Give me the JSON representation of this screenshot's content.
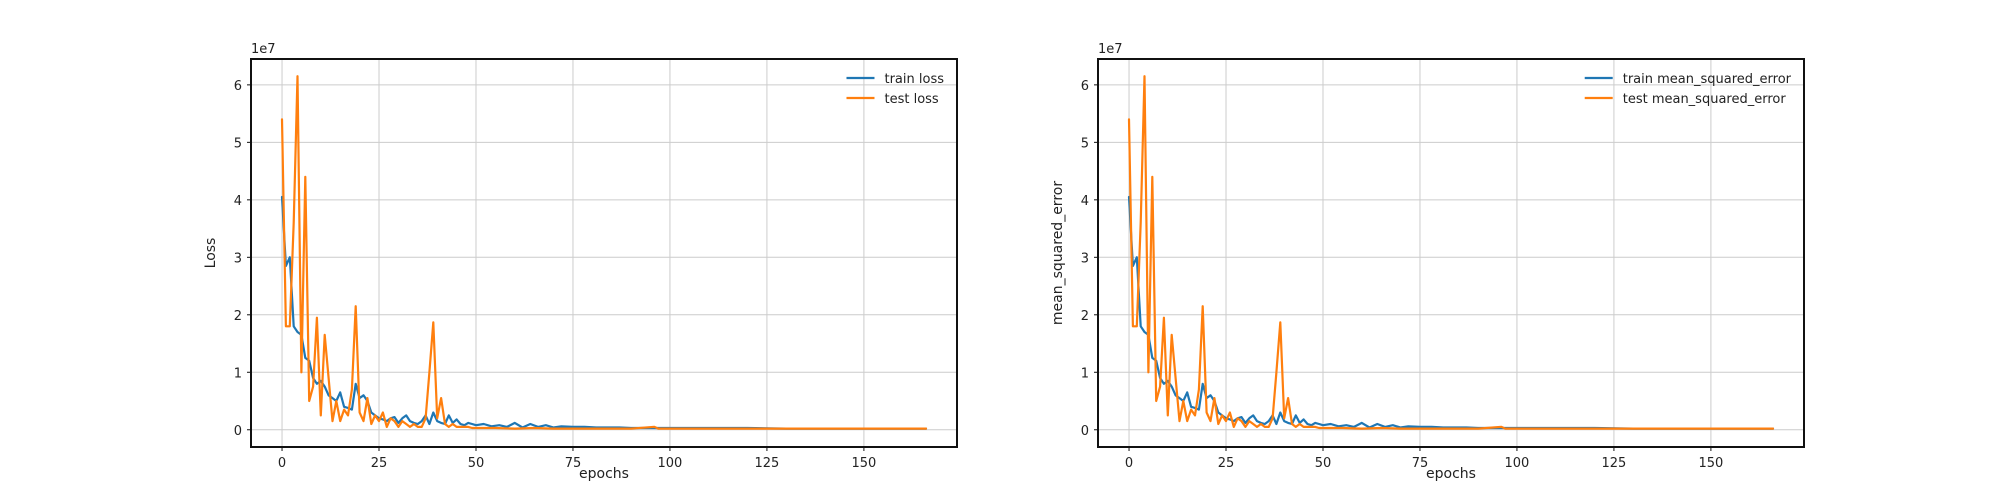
{
  "chart_data": [
    {
      "type": "line",
      "xlabel": "epochs",
      "ylabel": "Loss",
      "y_multiplier_label": "1e7",
      "xlim": [
        -8,
        174
      ],
      "ylim": [
        -0.3,
        6.45
      ],
      "xticks": [
        0,
        25,
        50,
        75,
        100,
        125,
        150
      ],
      "yticks": [
        0,
        1,
        2,
        3,
        4,
        5,
        6
      ],
      "grid": true,
      "legend_position": "top-right",
      "series": [
        {
          "name": "train loss",
          "color": "#1f77b4",
          "x": [
            0,
            1,
            2,
            3,
            4,
            5,
            6,
            7,
            8,
            9,
            10,
            11,
            12,
            13,
            14,
            15,
            16,
            17,
            18,
            19,
            20,
            21,
            22,
            23,
            24,
            25,
            26,
            27,
            28,
            29,
            30,
            31,
            32,
            33,
            34,
            35,
            36,
            37,
            38,
            39,
            40,
            41,
            42,
            43,
            44,
            45,
            46,
            47,
            48,
            49,
            50,
            52,
            54,
            56,
            58,
            60,
            62,
            64,
            66,
            68,
            70,
            72,
            75,
            78,
            81,
            84,
            87,
            90,
            95,
            100,
            110,
            120,
            130,
            140,
            150,
            160,
            166
          ],
          "y": [
            4.05,
            2.85,
            3.0,
            1.8,
            1.7,
            1.65,
            1.25,
            1.2,
            0.9,
            0.8,
            0.85,
            0.75,
            0.6,
            0.55,
            0.5,
            0.65,
            0.4,
            0.38,
            0.35,
            0.8,
            0.55,
            0.6,
            0.5,
            0.3,
            0.25,
            0.2,
            0.18,
            0.15,
            0.2,
            0.22,
            0.12,
            0.2,
            0.25,
            0.15,
            0.12,
            0.1,
            0.15,
            0.25,
            0.1,
            0.3,
            0.15,
            0.12,
            0.1,
            0.25,
            0.12,
            0.18,
            0.1,
            0.08,
            0.12,
            0.1,
            0.08,
            0.1,
            0.06,
            0.08,
            0.05,
            0.12,
            0.04,
            0.1,
            0.05,
            0.08,
            0.04,
            0.06,
            0.05,
            0.05,
            0.04,
            0.04,
            0.04,
            0.03,
            0.03,
            0.03,
            0.03,
            0.03,
            0.02,
            0.02,
            0.02,
            0.02,
            0.02
          ]
        },
        {
          "name": "test loss",
          "color": "#ff7f0e",
          "x": [
            0,
            1,
            2,
            3,
            4,
            5,
            6,
            7,
            8,
            9,
            10,
            11,
            12,
            13,
            14,
            15,
            16,
            17,
            18,
            19,
            20,
            21,
            22,
            23,
            24,
            25,
            26,
            27,
            28,
            29,
            30,
            31,
            32,
            33,
            34,
            35,
            36,
            37,
            38,
            39,
            40,
            41,
            42,
            43,
            44,
            45,
            46,
            47,
            48,
            49,
            50,
            55,
            60,
            65,
            70,
            80,
            90,
            96,
            97,
            100,
            110,
            120,
            130,
            140,
            150,
            160,
            166
          ],
          "y": [
            5.4,
            1.8,
            1.8,
            3.6,
            6.15,
            1.0,
            4.4,
            0.5,
            0.75,
            1.95,
            0.25,
            1.65,
            0.9,
            0.15,
            0.5,
            0.15,
            0.35,
            0.25,
            0.7,
            2.15,
            0.3,
            0.15,
            0.55,
            0.1,
            0.25,
            0.15,
            0.3,
            0.05,
            0.2,
            0.15,
            0.05,
            0.15,
            0.1,
            0.05,
            0.1,
            0.05,
            0.05,
            0.2,
            1.0,
            1.87,
            0.2,
            0.55,
            0.1,
            0.05,
            0.1,
            0.05,
            0.05,
            0.05,
            0.05,
            0.03,
            0.03,
            0.03,
            0.02,
            0.03,
            0.02,
            0.02,
            0.02,
            0.05,
            0.02,
            0.02,
            0.02,
            0.02,
            0.02,
            0.02,
            0.02,
            0.02,
            0.02
          ]
        }
      ]
    },
    {
      "type": "line",
      "xlabel": "epochs",
      "ylabel": "mean_squared_error",
      "y_multiplier_label": "1e7",
      "xlim": [
        -8,
        174
      ],
      "ylim": [
        -0.3,
        6.45
      ],
      "xticks": [
        0,
        25,
        50,
        75,
        100,
        125,
        150
      ],
      "yticks": [
        0,
        1,
        2,
        3,
        4,
        5,
        6
      ],
      "grid": true,
      "legend_position": "top-right",
      "series": [
        {
          "name": "train mean_squared_error",
          "color": "#1f77b4",
          "x": [
            0,
            1,
            2,
            3,
            4,
            5,
            6,
            7,
            8,
            9,
            10,
            11,
            12,
            13,
            14,
            15,
            16,
            17,
            18,
            19,
            20,
            21,
            22,
            23,
            24,
            25,
            26,
            27,
            28,
            29,
            30,
            31,
            32,
            33,
            34,
            35,
            36,
            37,
            38,
            39,
            40,
            41,
            42,
            43,
            44,
            45,
            46,
            47,
            48,
            49,
            50,
            52,
            54,
            56,
            58,
            60,
            62,
            64,
            66,
            68,
            70,
            72,
            75,
            78,
            81,
            84,
            87,
            90,
            95,
            100,
            110,
            120,
            130,
            140,
            150,
            160,
            166
          ],
          "y": [
            4.05,
            2.85,
            3.0,
            1.8,
            1.7,
            1.65,
            1.25,
            1.2,
            0.9,
            0.8,
            0.85,
            0.75,
            0.6,
            0.55,
            0.5,
            0.65,
            0.4,
            0.38,
            0.35,
            0.8,
            0.55,
            0.6,
            0.5,
            0.3,
            0.25,
            0.2,
            0.18,
            0.15,
            0.2,
            0.22,
            0.12,
            0.2,
            0.25,
            0.15,
            0.12,
            0.1,
            0.15,
            0.25,
            0.1,
            0.3,
            0.15,
            0.12,
            0.1,
            0.25,
            0.12,
            0.18,
            0.1,
            0.08,
            0.12,
            0.1,
            0.08,
            0.1,
            0.06,
            0.08,
            0.05,
            0.12,
            0.04,
            0.1,
            0.05,
            0.08,
            0.04,
            0.06,
            0.05,
            0.05,
            0.04,
            0.04,
            0.04,
            0.03,
            0.03,
            0.03,
            0.03,
            0.03,
            0.02,
            0.02,
            0.02,
            0.02,
            0.02
          ]
        },
        {
          "name": "test mean_squared_error",
          "color": "#ff7f0e",
          "x": [
            0,
            1,
            2,
            3,
            4,
            5,
            6,
            7,
            8,
            9,
            10,
            11,
            12,
            13,
            14,
            15,
            16,
            17,
            18,
            19,
            20,
            21,
            22,
            23,
            24,
            25,
            26,
            27,
            28,
            29,
            30,
            31,
            32,
            33,
            34,
            35,
            36,
            37,
            38,
            39,
            40,
            41,
            42,
            43,
            44,
            45,
            46,
            47,
            48,
            49,
            50,
            55,
            60,
            65,
            70,
            80,
            90,
            96,
            97,
            100,
            110,
            120,
            130,
            140,
            150,
            160,
            166
          ],
          "y": [
            5.4,
            1.8,
            1.8,
            3.6,
            6.15,
            1.0,
            4.4,
            0.5,
            0.75,
            1.95,
            0.25,
            1.65,
            0.9,
            0.15,
            0.5,
            0.15,
            0.35,
            0.25,
            0.7,
            2.15,
            0.3,
            0.15,
            0.55,
            0.1,
            0.25,
            0.15,
            0.3,
            0.05,
            0.2,
            0.15,
            0.05,
            0.15,
            0.1,
            0.05,
            0.1,
            0.05,
            0.05,
            0.2,
            1.0,
            1.87,
            0.2,
            0.55,
            0.1,
            0.05,
            0.1,
            0.05,
            0.05,
            0.05,
            0.05,
            0.03,
            0.03,
            0.03,
            0.02,
            0.03,
            0.02,
            0.02,
            0.02,
            0.05,
            0.02,
            0.02,
            0.02,
            0.02,
            0.02,
            0.02,
            0.02,
            0.02,
            0.02
          ]
        }
      ]
    }
  ]
}
